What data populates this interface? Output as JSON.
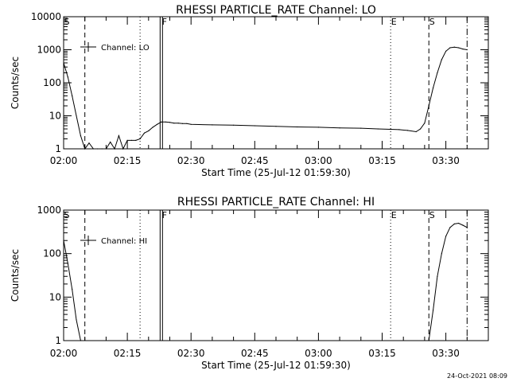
{
  "timestamp": "24-Oct-2021 08:09",
  "chart_data": [
    {
      "type": "line",
      "title": "RHESSI PARTICLE_RATE Channel: LO",
      "xlabel": "Start Time (25-Jul-12 01:59:30)",
      "ylabel": "Counts/sec",
      "legend_entry": "Channel: LO",
      "legend_placement": "top-left",
      "y_scale": "log",
      "ylim": [
        1,
        10000
      ],
      "y_ticks": [
        "1",
        "10",
        "100",
        "1000",
        "10000"
      ],
      "xlim": [
        "02:00",
        "03:40"
      ],
      "x_ticks": [
        "02:00",
        "02:15",
        "02:30",
        "02:45",
        "03:00",
        "03:15",
        "03:30"
      ],
      "markers": [
        {
          "label": "S",
          "time": "02:00",
          "style": "none"
        },
        {
          "label": "",
          "time": "02:05",
          "style": "dashed"
        },
        {
          "label": "",
          "time": "02:18",
          "style": "dotted"
        },
        {
          "label": "F",
          "time": "02:23",
          "style": "double-solid"
        },
        {
          "label": "E",
          "time": "03:17",
          "style": "dotted"
        },
        {
          "label": "S",
          "time": "03:26",
          "style": "dashed"
        },
        {
          "label": "",
          "time": "03:35",
          "style": "dash-dot"
        }
      ],
      "series": [
        {
          "x": [
            "02:00",
            "02:01",
            "02:02",
            "02:03",
            "02:04",
            "02:05",
            "02:06",
            "02:07",
            "02:08",
            "02:09",
            "02:10",
            "02:11",
            "02:12",
            "02:13",
            "02:14",
            "02:15",
            "02:16",
            "02:17",
            "02:18",
            "02:19",
            "02:20",
            "02:21",
            "02:22",
            "02:23",
            "02:24",
            "02:25",
            "02:26",
            "02:27",
            "02:28",
            "02:29",
            "02:30",
            "02:35",
            "02:40",
            "02:45",
            "02:50",
            "02:55",
            "03:00",
            "03:05",
            "03:10",
            "03:14",
            "03:17",
            "03:19",
            "03:21",
            "03:23",
            "03:24",
            "03:25",
            "03:26",
            "03:27",
            "03:28",
            "03:29",
            "03:30",
            "03:31",
            "03:32",
            "03:33",
            "03:34",
            "03:35"
          ],
          "y": [
            400,
            150,
            40,
            10,
            2.5,
            1,
            1.5,
            1,
            1,
            1,
            1,
            1.6,
            1,
            2.5,
            1,
            1.8,
            1.8,
            1.8,
            2,
            3,
            3.5,
            4.5,
            5.5,
            6.5,
            6.5,
            6.3,
            6,
            6,
            5.8,
            5.8,
            5.5,
            5.3,
            5.2,
            5,
            4.8,
            4.6,
            4.5,
            4.3,
            4.2,
            4,
            3.9,
            3.8,
            3.6,
            3.3,
            4,
            6,
            20,
            70,
            200,
            500,
            900,
            1150,
            1200,
            1150,
            1050,
            1000
          ]
        }
      ]
    },
    {
      "type": "line",
      "title": "RHESSI PARTICLE_RATE Channel: HI",
      "xlabel": "Start Time (25-Jul-12 01:59:30)",
      "ylabel": "Counts/sec",
      "legend_entry": "Channel: HI",
      "legend_placement": "top-left",
      "y_scale": "log",
      "ylim": [
        1,
        1000
      ],
      "y_ticks": [
        "1",
        "10",
        "100",
        "1000"
      ],
      "xlim": [
        "02:00",
        "03:40"
      ],
      "x_ticks": [
        "02:00",
        "02:15",
        "02:30",
        "02:45",
        "03:00",
        "03:15",
        "03:30"
      ],
      "markers": [
        {
          "label": "S",
          "time": "02:00",
          "style": "none"
        },
        {
          "label": "",
          "time": "02:05",
          "style": "dashed"
        },
        {
          "label": "",
          "time": "02:18",
          "style": "dotted"
        },
        {
          "label": "F",
          "time": "02:23",
          "style": "double-solid"
        },
        {
          "label": "E",
          "time": "03:17",
          "style": "dotted"
        },
        {
          "label": "S",
          "time": "03:26",
          "style": "dashed"
        },
        {
          "label": "",
          "time": "03:35",
          "style": "dash-dot"
        }
      ],
      "series": [
        {
          "x": [
            "02:00",
            "02:01",
            "02:02",
            "02:03",
            "02:04",
            "03:26",
            "03:27",
            "03:28",
            "03:29",
            "03:30",
            "03:31",
            "03:32",
            "03:33",
            "03:34",
            "03:35"
          ],
          "y": [
            200,
            60,
            15,
            3,
            1,
            1,
            5,
            30,
            100,
            250,
            400,
            480,
            500,
            450,
            400
          ]
        }
      ]
    }
  ]
}
